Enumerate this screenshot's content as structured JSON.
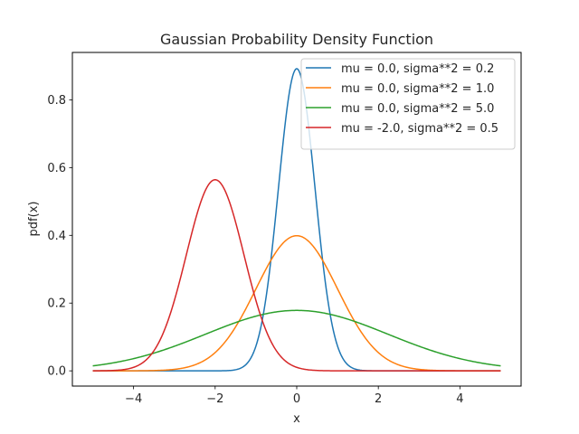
{
  "chart_data": {
    "type": "line",
    "title": "Gaussian Probability Density Function",
    "xlabel": "x",
    "ylabel": "pdf(x)",
    "xlim": [
      -5.5,
      5.5
    ],
    "ylim": [
      -0.045,
      0.94
    ],
    "x_range": [
      -5,
      5
    ],
    "x_ticks": [
      -4,
      -2,
      0,
      2,
      4
    ],
    "x_tick_labels": [
      "−4",
      "−2",
      "0",
      "2",
      "4"
    ],
    "y_ticks": [
      0.0,
      0.2,
      0.4,
      0.6,
      0.8
    ],
    "y_tick_labels": [
      "0.0",
      "0.2",
      "0.4",
      "0.6",
      "0.8"
    ],
    "grid": false,
    "legend_position": "top-right",
    "series": [
      {
        "name": "mu = 0.0, sigma**2 = 0.2",
        "mu": 0.0,
        "variance": 0.2,
        "color": "#1f77b4"
      },
      {
        "name": "mu = 0.0, sigma**2 = 1.0",
        "mu": 0.0,
        "variance": 1.0,
        "color": "#ff7f0e"
      },
      {
        "name": "mu = 0.0, sigma**2 = 5.0",
        "mu": 0.0,
        "variance": 5.0,
        "color": "#2ca02c"
      },
      {
        "name": "mu = -2.0, sigma**2 = 0.5",
        "mu": -2.0,
        "variance": 0.5,
        "color": "#d62728"
      }
    ]
  }
}
